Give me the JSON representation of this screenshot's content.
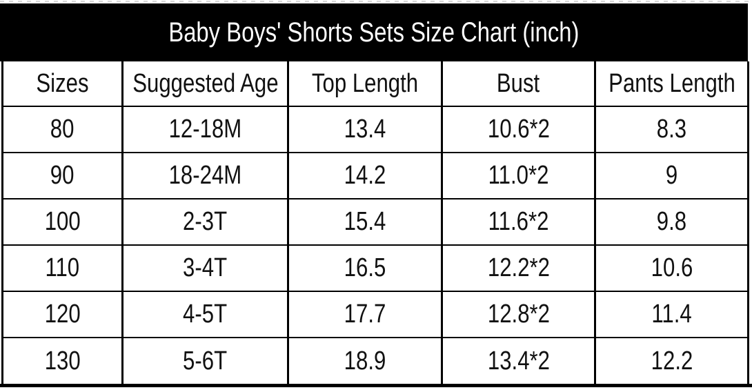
{
  "title": "Baby Boys' Shorts Sets Size Chart (inch)",
  "chart_data": {
    "type": "table",
    "title": "Baby Boys' Shorts Sets Size Chart (inch)",
    "unit": "inch",
    "columns": [
      "Sizes",
      "Suggested Age",
      "Top Length",
      "Bust",
      "Pants Length"
    ],
    "rows": [
      [
        "80",
        "12-18M",
        "13.4",
        "10.6*2",
        "8.3"
      ],
      [
        "90",
        "18-24M",
        "14.2",
        "11.0*2",
        "9"
      ],
      [
        "100",
        "2-3T",
        "15.4",
        "11.6*2",
        "9.8"
      ],
      [
        "110",
        "3-4T",
        "16.5",
        "12.2*2",
        "10.6"
      ],
      [
        "120",
        "4-5T",
        "17.7",
        "12.8*2",
        "11.4"
      ],
      [
        "130",
        "5-6T",
        "18.9",
        "13.4*2",
        "12.2"
      ]
    ]
  },
  "colors": {
    "title_bar_bg": "#000000",
    "title_text": "#ffffff",
    "border": "#000000",
    "cell_text": "#111111",
    "background": "#ffffff"
  }
}
